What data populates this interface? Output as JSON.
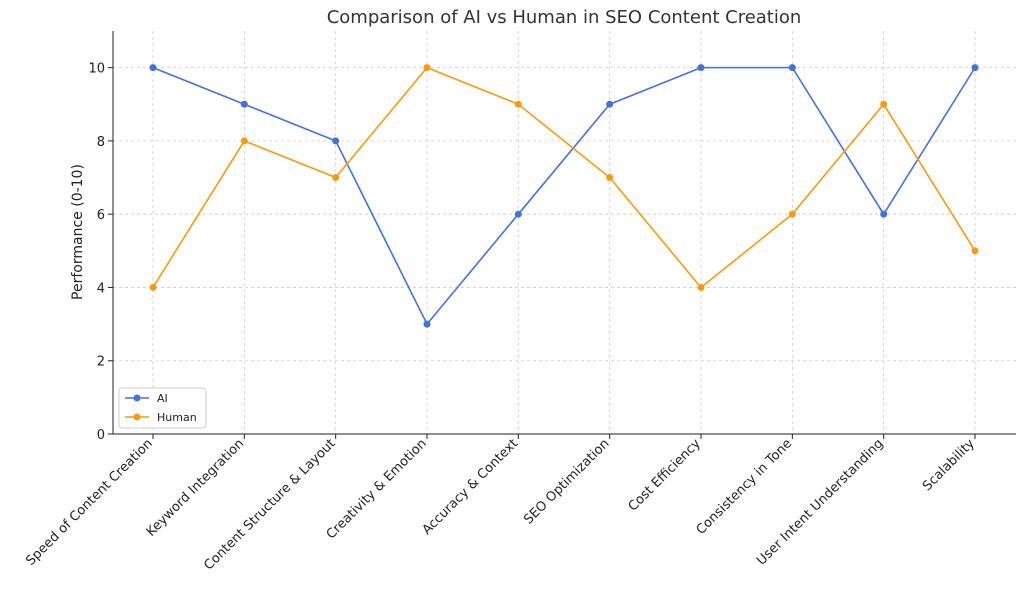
{
  "chart_data": {
    "type": "line",
    "title": "Comparison of AI vs Human in SEO Content Creation",
    "xlabel": "",
    "ylabel": "Performance (0-10)",
    "categories": [
      "Speed of Content Creation",
      "Keyword Integration",
      "Content Structure & Layout",
      "Creativity & Emotion",
      "Accuracy & Context",
      "SEO Optimization",
      "Cost Efficiency",
      "Consistency in Tone",
      "User Intent Understanding",
      "Scalability"
    ],
    "series": [
      {
        "name": "AI",
        "color": "#4472d6",
        "values": [
          10,
          9,
          8,
          3,
          6,
          9,
          10,
          10,
          6,
          10
        ]
      },
      {
        "name": "Human",
        "color": "#f39c12",
        "values": [
          4,
          8,
          7,
          10,
          9,
          7,
          4,
          6,
          9,
          5
        ]
      }
    ],
    "ylim": [
      0,
      11
    ],
    "yticks": [
      0,
      2,
      4,
      6,
      8,
      10
    ],
    "grid": true,
    "legend_position": "bottom-left"
  }
}
